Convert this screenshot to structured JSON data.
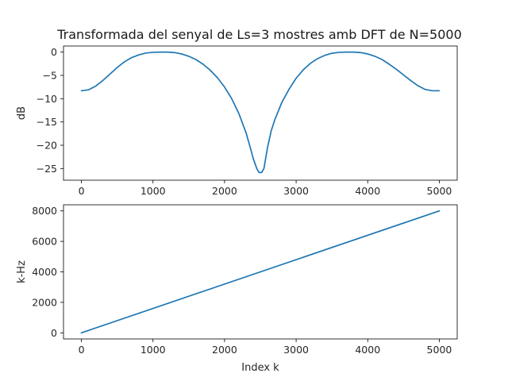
{
  "figure": {
    "title": "Transformada del senyal de Ls=3 mostres amb DFT de N=5000"
  },
  "chart_data": [
    {
      "type": "line",
      "title": "Transformada del senyal de Ls=3 mostres amb DFT de N=5000",
      "xlabel": "",
      "ylabel": "dB",
      "xlim": [
        -250,
        5250
      ],
      "ylim": [
        -27.5,
        1.3
      ],
      "xticks": [
        0,
        1000,
        2000,
        3000,
        4000,
        5000
      ],
      "xtick_labels": [
        "0",
        "1000",
        "2000",
        "3000",
        "4000",
        "5000"
      ],
      "yticks": [
        0,
        -5,
        -10,
        -15,
        -20,
        -25
      ],
      "ytick_labels": [
        "0",
        "−5",
        "−10",
        "−15",
        "−20",
        "−25"
      ],
      "grid": false,
      "color": "#1f77b4",
      "series": [
        {
          "x": [
            0,
            100,
            200,
            300,
            400,
            500,
            600,
            700,
            800,
            900,
            1000,
            1100,
            1200,
            1300,
            1400,
            1500,
            1600,
            1700,
            1800,
            1900,
            2000,
            2100,
            2200,
            2300,
            2350,
            2400,
            2450,
            2480,
            2500,
            2520,
            2550,
            2600,
            2650,
            2700,
            2800,
            2900,
            3000,
            3100,
            3200,
            3300,
            3400,
            3500,
            3600,
            3700,
            3800,
            3900,
            4000,
            4100,
            4200,
            4300,
            4400,
            4500,
            4600,
            4700,
            4800,
            4900,
            5000
          ],
          "y": [
            -8.3,
            -8.1,
            -7.3,
            -6.1,
            -4.7,
            -3.3,
            -2.1,
            -1.2,
            -0.6,
            -0.2,
            -0.05,
            0,
            0,
            -0.1,
            -0.4,
            -0.9,
            -1.6,
            -2.6,
            -3.9,
            -5.5,
            -7.5,
            -10.0,
            -13.2,
            -17.3,
            -20.0,
            -22.8,
            -25.0,
            -25.8,
            -25.9,
            -25.8,
            -25.0,
            -20.5,
            -17.0,
            -14.6,
            -10.8,
            -8.0,
            -5.6,
            -3.8,
            -2.4,
            -1.4,
            -0.7,
            -0.25,
            -0.05,
            0,
            0,
            -0.1,
            -0.4,
            -0.9,
            -1.6,
            -2.6,
            -3.7,
            -4.9,
            -6.1,
            -7.2,
            -8.0,
            -8.3,
            -8.3
          ]
        }
      ]
    },
    {
      "type": "line",
      "title": "",
      "xlabel": "Index k",
      "ylabel": "k-Hz",
      "xlim": [
        -250,
        5250
      ],
      "ylim": [
        -400,
        8400
      ],
      "xticks": [
        0,
        1000,
        2000,
        3000,
        4000,
        5000
      ],
      "xtick_labels": [
        "0",
        "1000",
        "2000",
        "3000",
        "4000",
        "5000"
      ],
      "yticks": [
        0,
        2000,
        4000,
        6000,
        8000
      ],
      "ytick_labels": [
        "0",
        "2000",
        "4000",
        "6000",
        "8000"
      ],
      "grid": false,
      "color": "#1f77b4",
      "series": [
        {
          "x": [
            0,
            5000
          ],
          "y": [
            0,
            8000
          ]
        }
      ]
    }
  ]
}
